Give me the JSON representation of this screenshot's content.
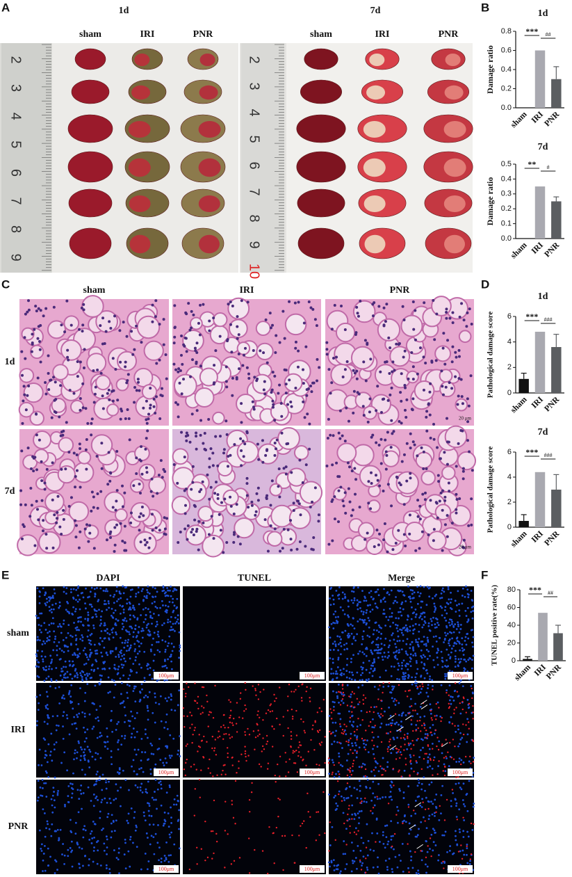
{
  "panel_labels": {
    "a": "A",
    "b": "B",
    "c": "C",
    "d": "D",
    "e": "E",
    "f": "F"
  },
  "panel_a": {
    "timepoints": [
      "1d",
      "7d"
    ],
    "groups": [
      "sham",
      "IRI",
      "PNR"
    ],
    "ruler_1d": [
      "2",
      "3",
      "4",
      "5",
      "6",
      "7",
      "8",
      "9"
    ],
    "ruler_7d": [
      "2",
      "3",
      "4",
      "5",
      "6",
      "7",
      "8",
      "9",
      "10"
    ]
  },
  "panel_c": {
    "groups": [
      "sham",
      "IRI",
      "PNR"
    ],
    "timepoints": [
      "1d",
      "7d"
    ],
    "scale_bar": "20 μm"
  },
  "panel_e": {
    "stains": [
      "DAPI",
      "TUNEL",
      "Merge"
    ],
    "groups": [
      "sham",
      "IRI",
      "PNR"
    ],
    "scale_bar": "100μm"
  },
  "chart_data": [
    {
      "type": "bar",
      "title": "1d",
      "y_label": "Damage ratio",
      "categories": [
        "sham",
        "IRI",
        "PNR"
      ],
      "values": [
        0,
        0.6,
        0.3
      ],
      "errors": [
        null,
        null,
        0.13
      ],
      "colors": [
        "#111111",
        "#a9a9b0",
        "#5b5e61"
      ],
      "ylim": [
        0,
        0.8
      ],
      "yticks": [
        {
          "value": 0,
          "label": "0.0"
        },
        0.2,
        0.4,
        0.6,
        0.8
      ],
      "annotations": [
        "***",
        "##"
      ]
    },
    {
      "type": "bar",
      "title": "7d",
      "y_label": "Damage ratio",
      "categories": [
        "sham",
        "IRI",
        "PNR"
      ],
      "values": [
        0,
        0.35,
        0.25
      ],
      "errors": [
        null,
        null,
        0.03
      ],
      "colors": [
        "#111111",
        "#a9a9b0",
        "#5b5e61"
      ],
      "ylim": [
        0,
        0.5
      ],
      "yticks": [
        {
          "value": 0,
          "label": "0.0"
        },
        0.1,
        0.2,
        0.3,
        0.4,
        0.5
      ],
      "annotations": [
        "**",
        "#"
      ]
    },
    {
      "type": "bar",
      "title": "1d",
      "y_label": "Pathological damage score",
      "categories": [
        "sham",
        "IRI",
        "PNR"
      ],
      "values": [
        1.1,
        4.8,
        3.6
      ],
      "errors": [
        0.45,
        null,
        1.0
      ],
      "colors": [
        "#111111",
        "#a9a9b0",
        "#5b5e61"
      ],
      "ylim": [
        0,
        6
      ],
      "yticks": [
        0,
        2,
        4,
        6
      ],
      "annotations": [
        "***",
        "###"
      ]
    },
    {
      "type": "bar",
      "title": "7d",
      "y_label": "Pathological damage score",
      "categories": [
        "sham",
        "IRI",
        "PNR"
      ],
      "values": [
        0.5,
        4.4,
        3.0
      ],
      "errors": [
        0.5,
        null,
        1.2
      ],
      "colors": [
        "#111111",
        "#a9a9b0",
        "#5b5e61"
      ],
      "ylim": [
        0,
        6
      ],
      "yticks": [
        0,
        2,
        4,
        6
      ],
      "annotations": [
        "***",
        "###"
      ]
    },
    {
      "type": "bar",
      "y_label": "TUNEL positive rate(%)",
      "categories": [
        "sham",
        "IRI",
        "PNR"
      ],
      "values": [
        2,
        54,
        31
      ],
      "errors": [
        2.5,
        null,
        9
      ],
      "colors": [
        "#111111",
        "#a9a9b0",
        "#5b5e61"
      ],
      "ylim": [
        0,
        80
      ],
      "yticks": [
        0,
        20,
        40,
        60,
        80
      ],
      "annotations": [
        "***",
        "##"
      ]
    }
  ]
}
